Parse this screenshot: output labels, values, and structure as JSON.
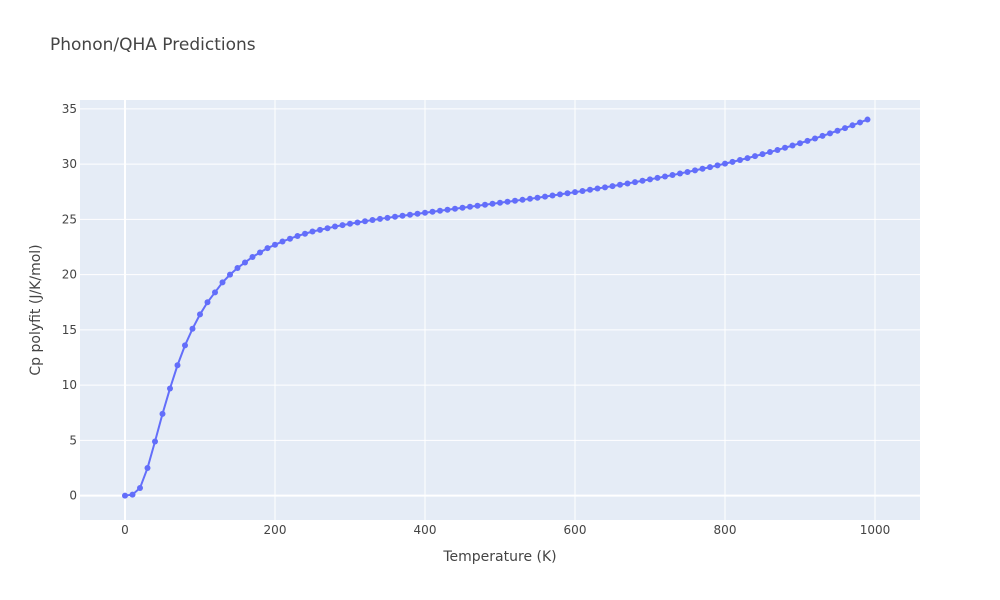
{
  "chart_data": {
    "type": "line",
    "title": "Phonon/QHA Predictions",
    "xlabel": "Temperature (K)",
    "ylabel": "Cp polyfit (J/K/mol)",
    "xlim": [
      -60,
      1060
    ],
    "ylim": [
      -2.2,
      35.8
    ],
    "xticks": [
      0,
      200,
      400,
      600,
      800,
      1000
    ],
    "yticks": [
      0,
      5,
      10,
      15,
      20,
      25,
      30,
      35
    ],
    "grid": true,
    "legend": "none",
    "line_color": "#636efa",
    "plot_bg": "#e5ecf6",
    "series": [
      {
        "x": [
          0,
          10,
          20,
          30,
          40,
          50,
          60,
          70,
          80,
          90,
          100,
          110,
          120,
          130,
          140,
          150,
          160,
          170,
          180,
          190,
          200,
          210,
          220,
          230,
          240,
          250,
          260,
          270,
          280,
          290,
          300,
          310,
          320,
          330,
          340,
          350,
          360,
          370,
          380,
          390,
          400,
          410,
          420,
          430,
          440,
          450,
          460,
          470,
          480,
          490,
          500,
          510,
          520,
          530,
          540,
          550,
          560,
          570,
          580,
          590,
          600,
          610,
          620,
          630,
          640,
          650,
          660,
          670,
          680,
          690,
          700,
          710,
          720,
          730,
          740,
          750,
          760,
          770,
          780,
          790,
          800,
          810,
          820,
          830,
          840,
          850,
          860,
          870,
          880,
          890,
          900,
          910,
          920,
          930,
          940,
          950,
          960,
          970,
          980,
          990
        ],
        "y": [
          0,
          0.1,
          0.7,
          2.5,
          4.9,
          7.4,
          9.7,
          11.8,
          13.6,
          15.1,
          16.4,
          17.5,
          18.4,
          19.3,
          20.0,
          20.6,
          21.1,
          21.6,
          22.0,
          22.4,
          22.7,
          23.0,
          23.25,
          23.5,
          23.7,
          23.9,
          24.05,
          24.2,
          24.35,
          24.48,
          24.6,
          24.72,
          24.83,
          24.94,
          25.04,
          25.14,
          25.24,
          25.33,
          25.42,
          25.51,
          25.6,
          25.69,
          25.78,
          25.87,
          25.96,
          26.05,
          26.14,
          26.23,
          26.32,
          26.41,
          26.5,
          26.59,
          26.68,
          26.77,
          26.86,
          26.96,
          27.06,
          27.16,
          27.26,
          27.36,
          27.46,
          27.57,
          27.68,
          27.79,
          27.9,
          28.01,
          28.13,
          28.25,
          28.37,
          28.49,
          28.62,
          28.75,
          28.88,
          29.01,
          29.15,
          29.29,
          29.43,
          29.58,
          29.73,
          29.88,
          30.04,
          30.2,
          30.37,
          30.54,
          30.72,
          30.9,
          31.09,
          31.28,
          31.48,
          31.68,
          31.89,
          32.1,
          32.32,
          32.55,
          32.78,
          33.02,
          33.26,
          33.51,
          33.77,
          34.03
        ]
      }
    ]
  }
}
